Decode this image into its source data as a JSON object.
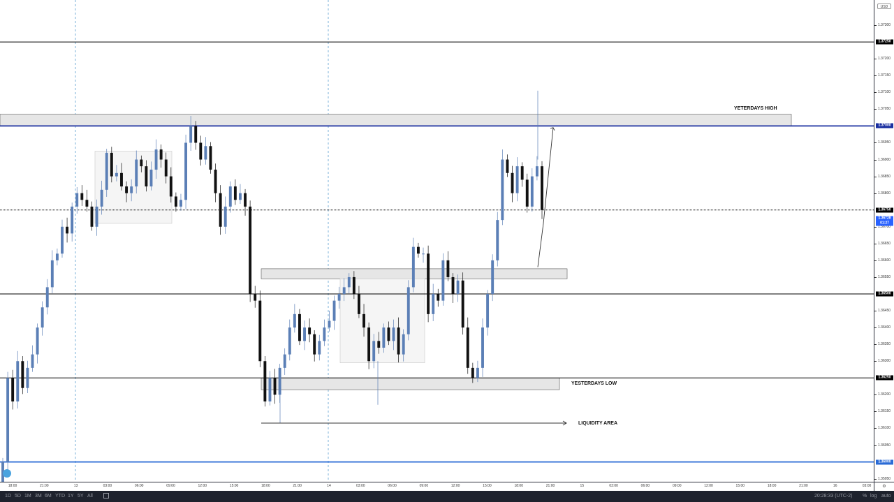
{
  "chart_data": {
    "type": "candlestick",
    "currency": "USD",
    "y_range": [
      1.3593,
      1.37375
    ],
    "time_axis": [
      "18:00",
      "21:00",
      "13",
      "03:00",
      "06:00",
      "09:00",
      "12:00",
      "15:00",
      "18:00",
      "21:00",
      "14",
      "03:00",
      "06:00",
      "09:00",
      "12:00",
      "15:00",
      "18:00",
      "21:00",
      "15",
      "03:00",
      "06:00",
      "09:00",
      "12:00",
      "15:00",
      "18:00",
      "21:00",
      "16",
      "03:00"
    ],
    "y_ticks": [
      "1.37300",
      "1.37200",
      "1.37150",
      "1.37100",
      "1.37050",
      "1.36950",
      "1.36900",
      "1.36850",
      "1.36800",
      "1.36700",
      "1.36650",
      "1.36600",
      "1.36550",
      "1.36450",
      "1.36400",
      "1.36350",
      "1.36300",
      "1.36200",
      "1.36150",
      "1.36100",
      "1.36050",
      "1.35950"
    ],
    "level_labels": [
      "1.37250",
      "1.37000",
      "1.36750",
      "1.36500",
      "1.36250",
      "1.36000"
    ],
    "current_price": "1.36728",
    "countdown": "01:27",
    "annotations": [
      "YETERDAYS HIGH",
      "YESTERDAYS LOW",
      "LIQUIDITY AREA"
    ],
    "closes": [
      1.36,
      1.3625,
      1.3618,
      1.363,
      1.3622,
      1.3628,
      1.3632,
      1.364,
      1.3646,
      1.3652,
      1.366,
      1.3662,
      1.367,
      1.3668,
      1.3676,
      1.368,
      1.3678,
      1.3676,
      1.367,
      1.3676,
      1.3681,
      1.3692,
      1.3685,
      1.3686,
      1.3682,
      1.368,
      1.3682,
      1.369,
      1.3688,
      1.3682,
      1.3687,
      1.3693,
      1.369,
      1.3685,
      1.3679,
      1.3676,
      1.3678,
      1.3695,
      1.37,
      1.3695,
      1.369,
      1.3694,
      1.3687,
      1.368,
      1.367,
      1.3676,
      1.3682,
      1.3678,
      1.368,
      1.3676,
      1.365,
      1.3648,
      1.363,
      1.3618,
      1.3625,
      1.362,
      1.3628,
      1.3632,
      1.364,
      1.3644,
      1.3636,
      1.364,
      1.3638,
      1.3632,
      1.3636,
      1.364,
      1.3642,
      1.3648,
      1.365,
      1.3652,
      1.3655,
      1.365,
      1.3644,
      1.364,
      1.363,
      1.3636,
      1.3634,
      1.364,
      1.3636,
      1.364,
      1.3632,
      1.3638,
      1.3652,
      1.3664,
      1.3662,
      1.3662,
      1.3644,
      1.365,
      1.3648,
      1.366,
      1.3655,
      1.365,
      1.3654,
      1.364,
      1.3628,
      1.3625,
      1.3628,
      1.364,
      1.365,
      1.366,
      1.3672,
      1.369,
      1.3686,
      1.368,
      1.3688,
      1.3684,
      1.3676,
      1.3685,
      1.3688,
      1.3675
    ]
  },
  "bottom_bar": {
    "ranges": [
      "1D",
      "5D",
      "1M",
      "3M",
      "6M",
      "YTD",
      "1Y",
      "5Y",
      "All"
    ],
    "clock": "20:28:33 (UTC-2)",
    "percent": "%",
    "log": "log",
    "auto": "auto"
  }
}
